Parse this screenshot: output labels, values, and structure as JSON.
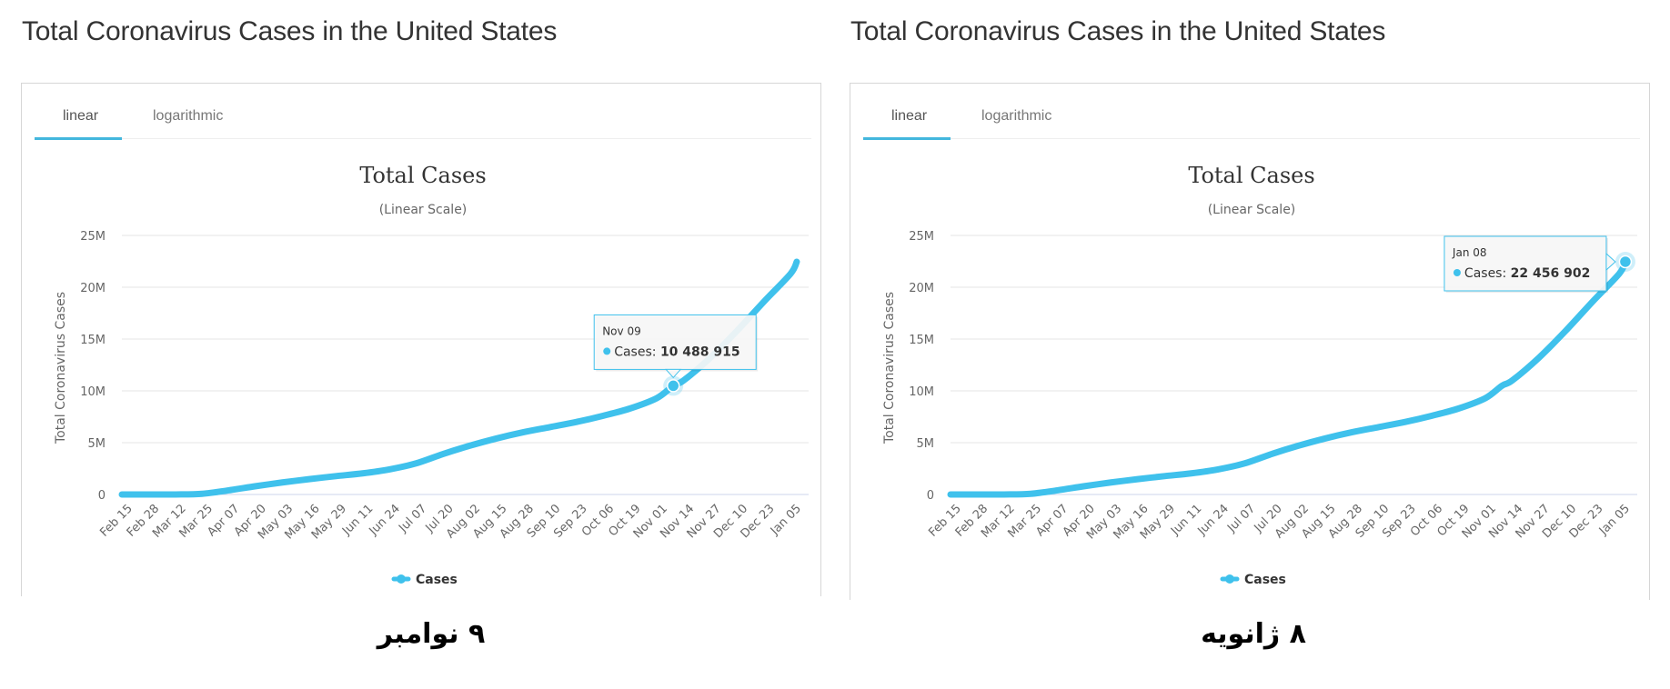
{
  "panels": [
    {
      "page_title": "Total Coronavirus Cases in the United States",
      "tabs": [
        {
          "label": "linear",
          "active": true
        },
        {
          "label": "logarithmic",
          "active": false
        }
      ],
      "caption": "۹ نوامبر",
      "tooltip": {
        "date": "Nov 09",
        "series_label": "Cases: ",
        "value_text": "10 488 915",
        "value": 10488915,
        "placement": "above"
      }
    },
    {
      "page_title": "Total Coronavirus Cases in the United States",
      "tabs": [
        {
          "label": "linear",
          "active": true
        },
        {
          "label": "logarithmic",
          "active": false
        }
      ],
      "caption": "۸ ژانویه",
      "tooltip": {
        "date": "Jan 08",
        "series_label": "Cases: ",
        "value_text": "22 456 902",
        "value": 22456902,
        "placement": "left"
      }
    }
  ],
  "colors": {
    "series": "#3fc1ec",
    "accent": "#43b7dd",
    "grid": "#e6e6e6",
    "text": "#333333"
  },
  "chart_data": [
    {
      "type": "line",
      "title": "Total Cases",
      "subtitle": "(Linear Scale)",
      "xlabel": "",
      "ylabel": "Total Coronavirus Cases",
      "ylim": [
        0,
        25000000
      ],
      "yticks": [
        0,
        5000000,
        10000000,
        15000000,
        20000000,
        25000000
      ],
      "ytick_labels": [
        "0",
        "5M",
        "10M",
        "15M",
        "20M",
        "25M"
      ],
      "xtick_labels": [
        "Feb 15",
        "Feb 28",
        "Mar 12",
        "Mar 25",
        "Apr 07",
        "Apr 20",
        "May 03",
        "May 16",
        "May 29",
        "Jun 11",
        "Jun 24",
        "Jul 07",
        "Jul 20",
        "Aug 02",
        "Aug 15",
        "Aug 28",
        "Sep 10",
        "Sep 23",
        "Oct 06",
        "Oct 19",
        "Nov 01",
        "Nov 14",
        "Nov 27",
        "Dec 10",
        "Dec 23",
        "Jan 05"
      ],
      "grid": true,
      "legend": {
        "label": "Cases",
        "position": "bottom-center"
      },
      "series": [
        {
          "name": "Cases",
          "x_days_from_feb15": [
            0,
            13,
            26,
            39,
            52,
            65,
            78,
            91,
            104,
            117,
            130,
            143,
            156,
            169,
            182,
            195,
            208,
            221,
            234,
            247,
            260,
            268,
            273,
            286,
            299,
            312,
            325,
            328
          ],
          "x_labels": [
            "Feb 15",
            "Feb 28",
            "Mar 12",
            "Mar 25",
            "Apr 07",
            "Apr 20",
            "May 03",
            "May 16",
            "May 29",
            "Jun 11",
            "Jun 24",
            "Jul 07",
            "Jul 20",
            "Aug 02",
            "Aug 15",
            "Aug 28",
            "Sep 10",
            "Sep 23",
            "Oct 06",
            "Oct 19",
            "Nov 01",
            "Nov 09",
            "Nov 14",
            "Nov 27",
            "Dec 10",
            "Dec 23",
            "Jan 05",
            "Jan 08"
          ],
          "values": [
            15,
            60,
            1600,
            68000,
            400000,
            800000,
            1160000,
            1480000,
            1770000,
            2040000,
            2420000,
            3000000,
            3900000,
            4700000,
            5400000,
            6000000,
            6500000,
            7000000,
            7600000,
            8300000,
            9300000,
            10488915,
            11000000,
            13200000,
            15800000,
            18600000,
            21300000,
            22456902
          ]
        }
      ],
      "highlight_index": 21
    },
    {
      "type": "line",
      "title": "Total Cases",
      "subtitle": "(Linear Scale)",
      "xlabel": "",
      "ylabel": "Total Coronavirus Cases",
      "ylim": [
        0,
        25000000
      ],
      "yticks": [
        0,
        5000000,
        10000000,
        15000000,
        20000000,
        25000000
      ],
      "ytick_labels": [
        "0",
        "5M",
        "10M",
        "15M",
        "20M",
        "25M"
      ],
      "xtick_labels": [
        "Feb 15",
        "Feb 28",
        "Mar 12",
        "Mar 25",
        "Apr 07",
        "Apr 20",
        "May 03",
        "May 16",
        "May 29",
        "Jun 11",
        "Jun 24",
        "Jul 07",
        "Jul 20",
        "Aug 02",
        "Aug 15",
        "Aug 28",
        "Sep 10",
        "Sep 23",
        "Oct 06",
        "Oct 19",
        "Nov 01",
        "Nov 14",
        "Nov 27",
        "Dec 10",
        "Dec 23",
        "Jan 05"
      ],
      "grid": true,
      "legend": {
        "label": "Cases",
        "position": "bottom-center"
      },
      "series": [
        {
          "name": "Cases",
          "x_days_from_feb15": [
            0,
            13,
            26,
            39,
            52,
            65,
            78,
            91,
            104,
            117,
            130,
            143,
            156,
            169,
            182,
            195,
            208,
            221,
            234,
            247,
            260,
            268,
            273,
            286,
            299,
            312,
            325,
            328
          ],
          "x_labels": [
            "Feb 15",
            "Feb 28",
            "Mar 12",
            "Mar 25",
            "Apr 07",
            "Apr 20",
            "May 03",
            "May 16",
            "May 29",
            "Jun 11",
            "Jun 24",
            "Jul 07",
            "Jul 20",
            "Aug 02",
            "Aug 15",
            "Aug 28",
            "Sep 10",
            "Sep 23",
            "Oct 06",
            "Oct 19",
            "Nov 01",
            "Nov 09",
            "Nov 14",
            "Nov 27",
            "Dec 10",
            "Dec 23",
            "Jan 05",
            "Jan 08"
          ],
          "values": [
            15,
            60,
            1600,
            68000,
            400000,
            800000,
            1160000,
            1480000,
            1770000,
            2040000,
            2420000,
            3000000,
            3900000,
            4700000,
            5400000,
            6000000,
            6500000,
            7000000,
            7600000,
            8300000,
            9300000,
            10488915,
            11000000,
            13200000,
            15800000,
            18600000,
            21300000,
            22456902
          ]
        }
      ],
      "highlight_index": 27
    }
  ]
}
